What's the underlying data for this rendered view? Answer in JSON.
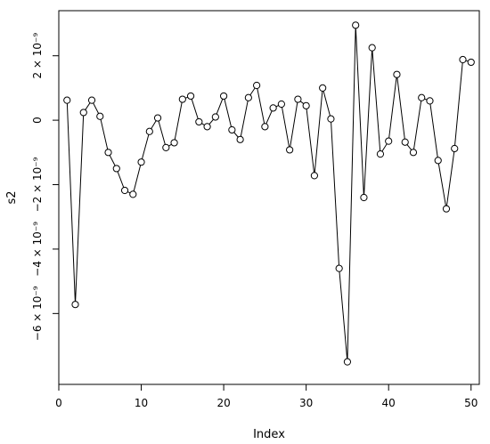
{
  "chart_data": {
    "type": "line",
    "xlabel": "Index",
    "ylabel": "s2",
    "xlim": [
      0,
      51
    ],
    "ylim": [
      -8.2,
      3.4
    ],
    "x_ticks": [
      {
        "value": 0,
        "label": "0"
      },
      {
        "value": 10,
        "label": "10"
      },
      {
        "value": 20,
        "label": "20"
      },
      {
        "value": 30,
        "label": "30"
      },
      {
        "value": 40,
        "label": "40"
      },
      {
        "value": 50,
        "label": "50"
      }
    ],
    "y_ticks": [
      {
        "value": -6,
        "label": "−6 × 10⁻⁹"
      },
      {
        "value": -4,
        "label": "−4 × 10⁻⁹"
      },
      {
        "value": -2,
        "label": "−2 × 10⁻⁹"
      },
      {
        "value": 0,
        "label": "0"
      },
      {
        "value": 2,
        "label": "2 × 10⁻⁹"
      }
    ],
    "y_unit_exponent": -9,
    "x": [
      1,
      2,
      3,
      4,
      5,
      6,
      7,
      8,
      9,
      10,
      11,
      12,
      13,
      14,
      15,
      16,
      17,
      18,
      19,
      20,
      21,
      22,
      23,
      24,
      25,
      26,
      27,
      28,
      29,
      30,
      31,
      32,
      33,
      34,
      35,
      36,
      37,
      38,
      39,
      40,
      41,
      42,
      43,
      44,
      45,
      46,
      47,
      48,
      49,
      50
    ],
    "y": [
      0.62,
      -5.72,
      0.24,
      0.62,
      0.12,
      -1.0,
      -1.5,
      -2.18,
      -2.3,
      -1.3,
      -0.35,
      0.07,
      -0.85,
      -0.7,
      0.65,
      0.75,
      -0.05,
      -0.2,
      0.1,
      0.75,
      -0.3,
      -0.6,
      0.7,
      1.08,
      -0.2,
      0.38,
      0.5,
      -0.92,
      0.65,
      0.45,
      -1.72,
      1.0,
      0.04,
      -4.6,
      -7.5,
      2.95,
      -2.4,
      2.25,
      -1.05,
      -0.65,
      1.42,
      -0.68,
      -1.0,
      0.7,
      0.6,
      -1.25,
      -2.75,
      -0.88,
      1.88,
      1.8
    ],
    "marker": "open-circle",
    "line_color": "#000000",
    "grid": false
  }
}
